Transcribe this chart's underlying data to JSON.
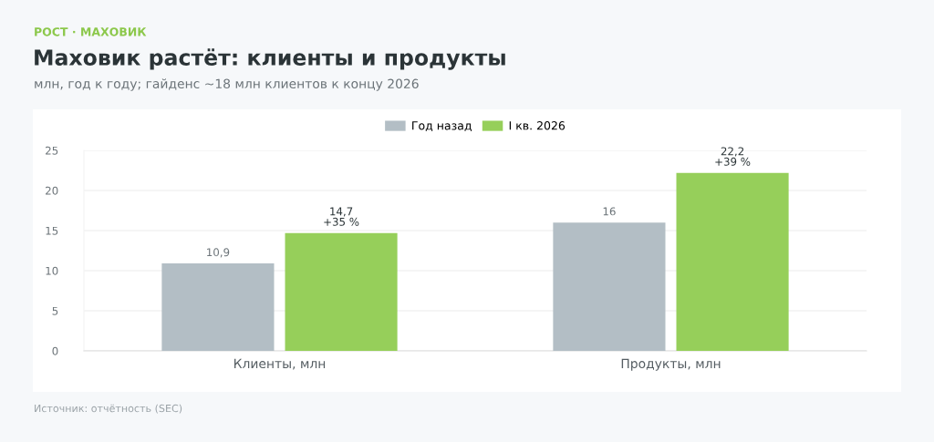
{
  "chart_data": {
    "type": "bar",
    "title": "Маховик растёт: клиенты и продукты",
    "subtitle": "млн, год к году; гайденс ~18 млн клиентов к концу 2026",
    "annotations": [
      "РОСТ · МАХОВИК",
      "Источник: отчётность (SEC)"
    ],
    "categories": [
      "Клиенты, млн",
      "Продукты, млн"
    ],
    "series": [
      {
        "name": "Год назад",
        "color": "#b3bec5",
        "values": [
          10.9,
          16
        ],
        "value_labels": [
          "10,9",
          "16"
        ]
      },
      {
        "name": "I кв. 2026",
        "color": "#96cf5a",
        "values": [
          14.7,
          22.2
        ],
        "value_labels": [
          "14,7\n+35 %",
          "22,2\n+39 %"
        ]
      }
    ],
    "ylim": [
      0,
      25
    ],
    "yticks": [
      0,
      5,
      10,
      15,
      20,
      25
    ],
    "grid": "y",
    "legend": "top"
  }
}
